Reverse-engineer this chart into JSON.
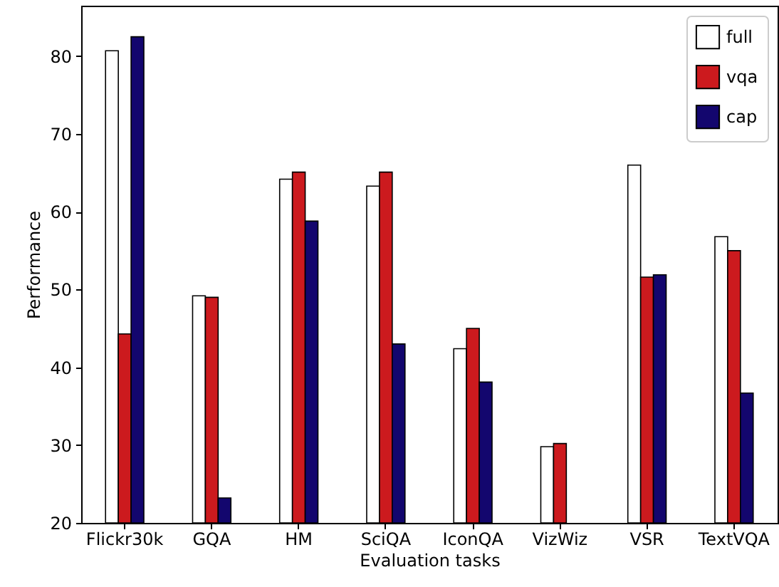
{
  "chart_data": {
    "type": "bar",
    "xlabel": "Evaluation tasks",
    "ylabel": "Performance",
    "categories": [
      "Flickr30k",
      "GQA",
      "HM",
      "SciQA",
      "IconQA",
      "VizWiz",
      "VSR",
      "TextVQA"
    ],
    "series": [
      {
        "name": "full",
        "color": "#ffffff",
        "values": [
          80.7,
          49.2,
          64.2,
          63.3,
          42.4,
          29.8,
          66.0,
          56.8
        ]
      },
      {
        "name": "vqa",
        "color": "#cc1a1e",
        "values": [
          44.3,
          49.0,
          65.1,
          65.1,
          45.0,
          30.2,
          51.6,
          55.0
        ]
      },
      {
        "name": "cap",
        "color": "#13066e",
        "values": [
          82.5,
          23.2,
          58.8,
          43.0,
          38.1,
          null,
          51.9,
          36.7
        ]
      }
    ],
    "ylim": [
      20,
      86.5
    ],
    "yticks": [
      20,
      30,
      40,
      50,
      60,
      70,
      80
    ],
    "grid": false,
    "legend": "top right"
  }
}
